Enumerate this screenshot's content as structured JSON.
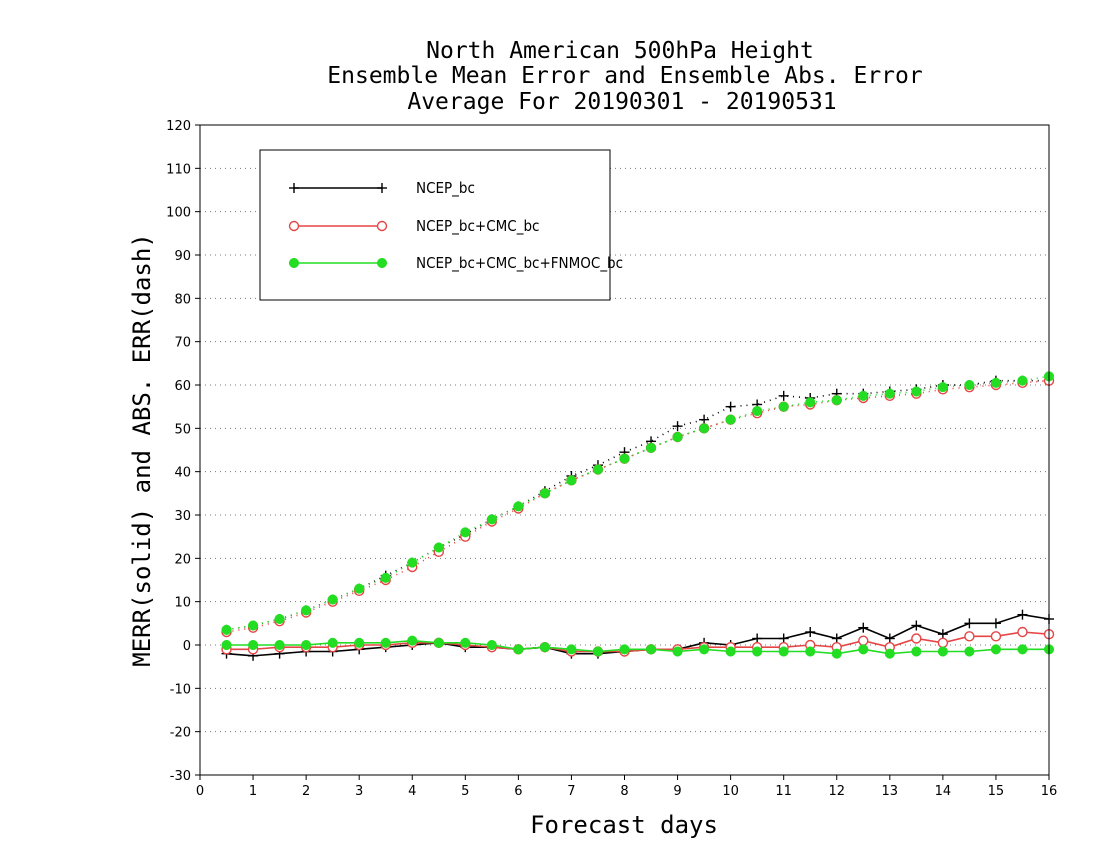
{
  "chart_data": {
    "type": "line",
    "title": "North American 500hPa Height",
    "subtitle": [
      "Ensemble Mean Error and Ensemble Abs. Error",
      "Average For 20190301 - 20190531"
    ],
    "xlabel": "Forecast days",
    "ylabel": "MERR(solid) and ABS. ERR(dash)",
    "xlim": [
      0,
      16
    ],
    "ylim": [
      -30,
      120
    ],
    "x_ticks": [
      0,
      1,
      2,
      3,
      4,
      5,
      6,
      7,
      8,
      9,
      10,
      11,
      12,
      13,
      14,
      15,
      16
    ],
    "y_ticks": [
      -30,
      -20,
      -10,
      0,
      10,
      20,
      30,
      40,
      50,
      60,
      70,
      80,
      90,
      100,
      110,
      120
    ],
    "grid": "horizontal dotted",
    "legend_position": "top-left",
    "x": [
      0.5,
      1,
      1.5,
      2,
      2.5,
      3,
      3.5,
      4,
      4.5,
      5,
      5.5,
      6,
      6.5,
      7,
      7.5,
      8,
      8.5,
      9,
      9.5,
      10,
      10.5,
      11,
      11.5,
      12,
      12.5,
      13,
      13.5,
      14,
      14.5,
      15,
      15.5,
      16
    ],
    "series": [
      {
        "name": "NCEP_bc",
        "color": "#000000",
        "marker": "plus",
        "merr": [
          -2.0,
          -2.5,
          -2.0,
          -1.5,
          -1.5,
          -1.0,
          -0.5,
          0.0,
          0.5,
          -0.5,
          -0.5,
          -1.0,
          -0.5,
          -2.0,
          -2.0,
          -1.5,
          -1.0,
          -1.0,
          0.5,
          0.0,
          1.5,
          1.5,
          3.0,
          1.5,
          4.0,
          1.5,
          4.5,
          2.5,
          5.0,
          5.0,
          7.0,
          6.0
        ],
        "abs_err": [
          3.5,
          4.5,
          6.0,
          8.0,
          10.5,
          13.0,
          16.0,
          19.0,
          22.5,
          25.5,
          29.0,
          32.0,
          35.5,
          39.0,
          41.5,
          44.5,
          47.0,
          50.5,
          52.0,
          55.0,
          55.5,
          57.5,
          57.0,
          58.0,
          58.0,
          58.5,
          59.0,
          60.0,
          60.0,
          61.0,
          61.0,
          61.0
        ]
      },
      {
        "name": "NCEP_bc+CMC_bc",
        "color": "#e64545",
        "marker": "open-circle",
        "merr": [
          -1.0,
          -1.0,
          -0.5,
          -0.5,
          -0.5,
          0.0,
          0.0,
          0.5,
          0.5,
          0.0,
          -0.5,
          -1.0,
          -0.5,
          -1.5,
          -1.5,
          -1.5,
          -1.0,
          -1.0,
          -0.5,
          -0.5,
          -0.5,
          -0.5,
          0.0,
          -0.5,
          1.0,
          -0.5,
          1.5,
          0.5,
          2.0,
          2.0,
          3.0,
          2.5
        ],
        "abs_err": [
          3.0,
          4.0,
          5.5,
          7.5,
          10.0,
          12.5,
          15.0,
          18.0,
          21.5,
          25.0,
          28.5,
          31.5,
          35.0,
          38.0,
          40.5,
          43.0,
          45.5,
          48.0,
          50.0,
          52.0,
          53.5,
          55.0,
          55.5,
          56.5,
          57.0,
          57.5,
          58.0,
          59.0,
          59.5,
          60.0,
          60.5,
          61.0
        ]
      },
      {
        "name": "NCEP_bc+CMC_bc+FNMOC_bc",
        "color": "#22dd22",
        "marker": "filled-circle",
        "merr": [
          0.0,
          0.0,
          0.0,
          0.0,
          0.5,
          0.5,
          0.5,
          1.0,
          0.5,
          0.5,
          0.0,
          -1.0,
          -0.5,
          -1.0,
          -1.5,
          -1.0,
          -1.0,
          -1.5,
          -1.0,
          -1.5,
          -1.5,
          -1.5,
          -1.5,
          -2.0,
          -1.0,
          -2.0,
          -1.5,
          -1.5,
          -1.5,
          -1.0,
          -1.0,
          -1.0
        ],
        "abs_err": [
          3.5,
          4.5,
          6.0,
          8.0,
          10.5,
          13.0,
          15.5,
          19.0,
          22.5,
          26.0,
          29.0,
          32.0,
          35.0,
          38.0,
          40.5,
          43.0,
          45.5,
          48.0,
          50.0,
          52.0,
          54.0,
          55.0,
          56.0,
          56.5,
          57.5,
          58.0,
          58.5,
          59.5,
          60.0,
          60.5,
          61.0,
          62.0
        ]
      }
    ]
  }
}
